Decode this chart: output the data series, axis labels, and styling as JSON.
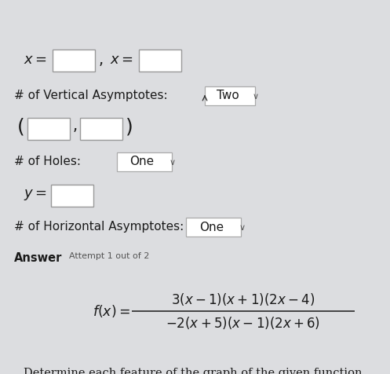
{
  "title_line": "Determine each feature of the graph of the given function.",
  "answer_label": "Answer",
  "attempt_label": "Attempt 1 out of 2",
  "ha_label": "# of Horizontal Asymptotes:",
  "ha_value": "One",
  "ha_var": "y =",
  "holes_label": "# of Holes:",
  "holes_value": "One",
  "va_label": "# of Vertical Asymptotes:",
  "va_value": "Two",
  "va_var1": "x =",
  "va_var2": "x =",
  "bg_color": "#dcdde0",
  "text_color": "#1a1a1a",
  "box_color": "#ffffff",
  "box_edge_color": "#999999",
  "dropdown_edge": "#aaaaaa"
}
